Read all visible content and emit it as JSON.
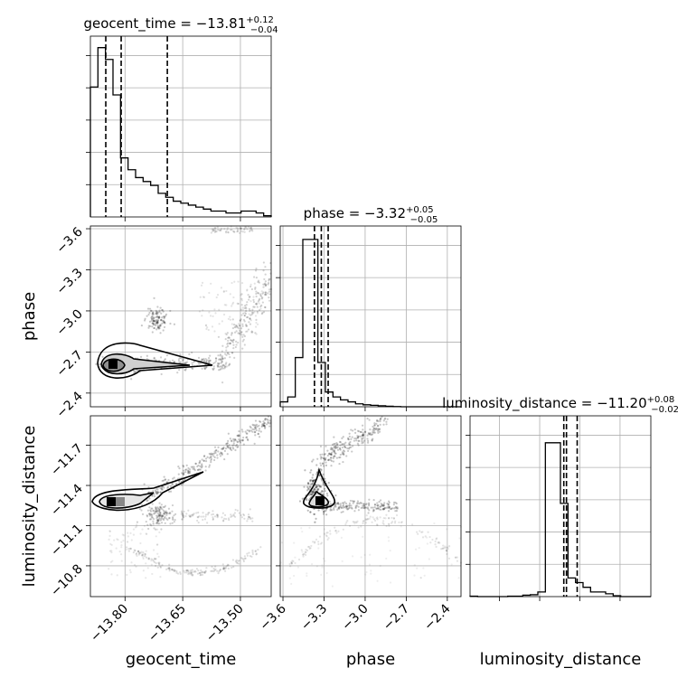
{
  "chart_data": {
    "type": "corner",
    "parameters": [
      "geocent_time",
      "phase",
      "luminosity_distance"
    ],
    "grid": true,
    "panels": [
      {
        "kind": "histogram",
        "parameter": "geocent_time",
        "title": {
          "prefix": "geocent_time = ",
          "median": "−13.81",
          "plus": "+0.12",
          "minus": "−0.04"
        },
        "range": [
          -13.89,
          -13.42
        ],
        "bins": 24,
        "counts": [
          33,
          43,
          40,
          31,
          15,
          12,
          10,
          9,
          8,
          6,
          5,
          4,
          3.5,
          3,
          2.5,
          2,
          1.5,
          1.5,
          1,
          1,
          1.5,
          1.5,
          1,
          0.3
        ],
        "ymax": 45,
        "quantiles": [
          -13.85,
          -13.81,
          -13.69
        ]
      },
      {
        "kind": "histogram",
        "parameter": "phase",
        "title": {
          "prefix": "phase = ",
          "median": "−3.32",
          "plus": "+0.05",
          "minus": "−0.05"
        },
        "range": [
          -3.62,
          -2.3
        ],
        "bins": 24,
        "counts": [
          1,
          2,
          10,
          34,
          34,
          9,
          3,
          2,
          1.4,
          1,
          0.6,
          0.4,
          0.3,
          0.2,
          0.1,
          0.05,
          0,
          0,
          0,
          0,
          0,
          0,
          0,
          0
        ],
        "ymax": 36,
        "quantiles": [
          -3.37,
          -3.32,
          -3.27
        ]
      },
      {
        "kind": "histogram",
        "parameter": "luminosity_distance",
        "title": {
          "prefix": "luminosity_distance = ",
          "median": "−11.20",
          "plus": "+0.08",
          "minus": "−0.02"
        },
        "range": [
          -11.92,
          -10.57
        ],
        "bins": 24,
        "counts": [
          0.1,
          0,
          0,
          0,
          0,
          0.1,
          0.1,
          0.3,
          0.4,
          1,
          33,
          33,
          20,
          4,
          3,
          2,
          1,
          1,
          0.6,
          0.2,
          0,
          0,
          0,
          0
        ],
        "ymax": 38,
        "quantiles": [
          -11.22,
          -11.2,
          -11.12
        ]
      },
      {
        "kind": "2d",
        "x": "geocent_time",
        "y": "phase",
        "contour_levels": 3
      },
      {
        "kind": "2d",
        "x": "geocent_time",
        "y": "luminosity_distance",
        "contour_levels": 3
      },
      {
        "kind": "2d",
        "x": "phase",
        "y": "luminosity_distance",
        "contour_levels": 3
      }
    ],
    "axes": {
      "geocent_time": {
        "label": "geocent_time",
        "lim": [
          -13.89,
          -13.42
        ],
        "ticks": [
          -13.8,
          -13.65,
          -13.5
        ],
        "tick_labels": [
          "−13.80",
          "−13.65",
          "−13.50"
        ]
      },
      "phase": {
        "label": "phase",
        "lim": [
          -3.62,
          -2.3
        ],
        "ticks": [
          -3.6,
          -3.3,
          -3.0,
          -2.7,
          -2.4
        ],
        "tick_labels": [
          "−3.6",
          "−3.3",
          "−3.0",
          "−2.7",
          "−2.4"
        ]
      },
      "luminosity_distance": {
        "label": "luminosity_distance",
        "lim": [
          -11.92,
          -10.57
        ],
        "ticks": [
          -11.7,
          -11.4,
          -11.1,
          -10.8
        ],
        "tick_labels": [
          "−11.7",
          "−11.4",
          "−11.1",
          "−10.8"
        ]
      }
    }
  }
}
